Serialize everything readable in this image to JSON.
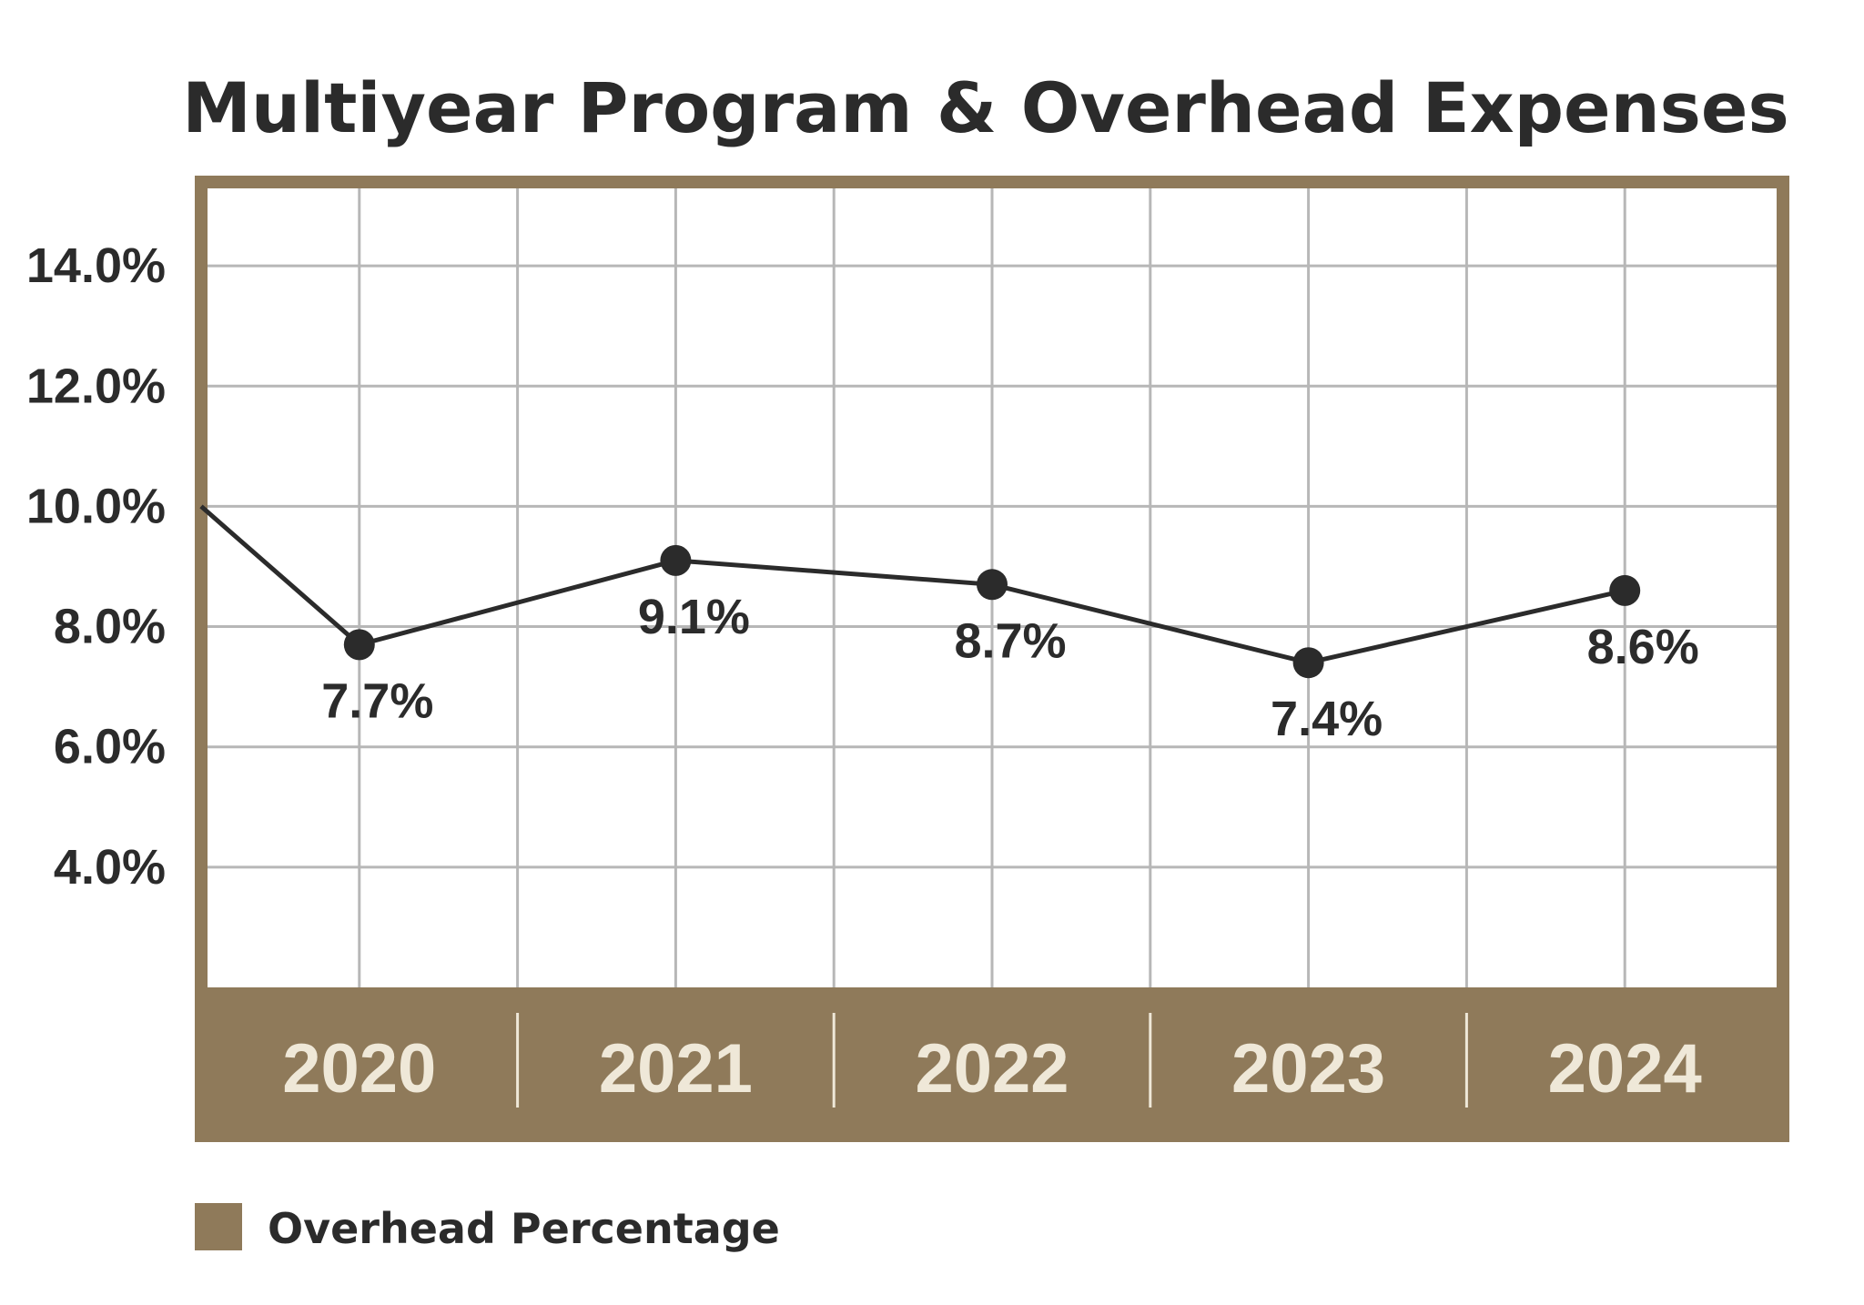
{
  "colors": {
    "frame": "#8f7a5a",
    "band": "#8f7a5a",
    "band_text": "#efe8d8",
    "line": "#2b2b2b",
    "grid": "#b7b7b7",
    "text": "#2b2b2b"
  },
  "chart_data": {
    "type": "line",
    "title": "Multiyear Program & Overhead Expenses",
    "categories": [
      "2020",
      "2021",
      "2022",
      "2023",
      "2024"
    ],
    "series": [
      {
        "name": "Overhead Percentage",
        "values": [
          7.7,
          9.1,
          8.7,
          7.4,
          8.6
        ],
        "labels": [
          "7.7%",
          "9.1%",
          "8.7%",
          "7.4%",
          "8.6%"
        ]
      }
    ],
    "yticks": [
      "4.0%",
      "6.0%",
      "8.0%",
      "10.0%",
      "12.0%",
      "14.0%"
    ],
    "ytick_values": [
      4,
      6,
      8,
      10,
      12,
      14
    ],
    "ylim": [
      2,
      15.5
    ],
    "grid": true,
    "legend": {
      "position": "bottom-left",
      "label": "Overhead Percentage"
    }
  }
}
